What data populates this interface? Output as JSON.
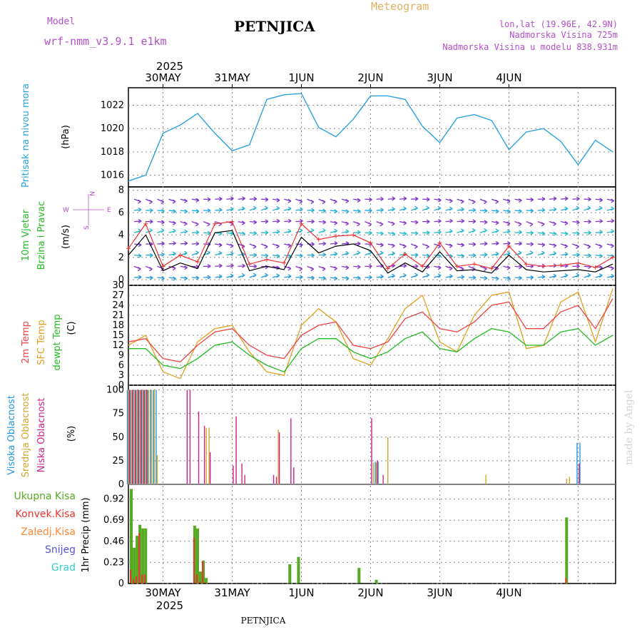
{
  "header": {
    "model_label": "Model",
    "model_name": "wrf-nmm_v3.9.1  e1km",
    "station": "PETNJICA",
    "product": "Meteogram",
    "lonlat": "lon,lat (19.96E, 42.9N)",
    "elev": "Nadmorska Visina 725m",
    "elev_model": "Nadmorska Visina u modelu 838.931m",
    "footer_station": "PETNJICA",
    "watermark": "made by Angel"
  },
  "time_axis": {
    "year": "2025",
    "labels": [
      "30MAY",
      "31MAY",
      "1JUN",
      "2JUN",
      "3JUN",
      "4JUN"
    ]
  },
  "colors": {
    "pressure": "#29a3dc",
    "wind_speed": "#000000",
    "wind_gust": "#ee3333",
    "t2m": "#ee4444",
    "tsfc": "#e0a020",
    "dewpt": "#22bb22",
    "cloud_high": "#2299dd",
    "cloud_mid": "#d4a52a",
    "cloud_low": "#cc2288",
    "rain_total": "#55aa22",
    "rain_conv": "#ee3333",
    "rain_frz": "#ff8833",
    "snow": "#5555dd",
    "hail": "#33cccc"
  },
  "panels": {
    "pressure": {
      "title": "Pritisak na nivou mora",
      "unit": "(hPa)",
      "ticks": [
        "1016",
        "1018",
        "1020",
        "1022"
      ]
    },
    "wind": {
      "title1": "10m Vjetar",
      "title2": "Brzina i Pravac",
      "unit": "(m/s)",
      "ticks": [
        "0",
        "2",
        "4",
        "6",
        "8"
      ],
      "compass": {
        "w": "W",
        "e": "E",
        "n": "N",
        "s": "S"
      }
    },
    "temp": {
      "t1": "2m Temp",
      "t2": "SFC Temp",
      "t3": "dewpt Temp",
      "unit": "(C)",
      "ticks": [
        "0",
        "3",
        "6",
        "9",
        "12",
        "15",
        "18",
        "21",
        "24",
        "27",
        "30"
      ]
    },
    "cloud": {
      "t1": "Visoka Oblacnost",
      "t2": "Srednja Oblacnost",
      "t3": "Niska Oblacnost",
      "unit": "(%)",
      "ticks": [
        "0",
        "25",
        "50",
        "75",
        "100"
      ]
    },
    "precip": {
      "labels": [
        "Ukupna Kisa",
        "Konvek.Kisa",
        "Zaledj.Kisa",
        "Snijeg",
        "Grad"
      ],
      "unit": "1hr Precip (mm)",
      "ticks": [
        "0",
        "0.23",
        "0.46",
        "0.69",
        "0.92"
      ]
    }
  },
  "chart_data": [
    {
      "type": "line",
      "title": "Pritisak na nivou mora",
      "ylabel": "(hPa)",
      "x_hours_from_29may_12utc": [
        0,
        6,
        12,
        18,
        24,
        30,
        36,
        42,
        48,
        54,
        60,
        66,
        72,
        78,
        84,
        90,
        96,
        102,
        108,
        114,
        120,
        126,
        132,
        138,
        144,
        150,
        156,
        162,
        168
      ],
      "series": [
        {
          "name": "Pritisak na nivou mora",
          "values": [
            1015.5,
            1016.0,
            1019.6,
            1020.3,
            1021.3,
            1019.6,
            1018.1,
            1018.6,
            1022.5,
            1022.9,
            1023.0,
            1020.1,
            1019.3,
            1020.8,
            1022.8,
            1022.8,
            1022.5,
            1020.2,
            1018.8,
            1020.9,
            1021.2,
            1020.7,
            1018.2,
            1019.7,
            1020.0,
            1018.9,
            1016.9,
            1019.0,
            1018.0
          ]
        }
      ],
      "ylim": [
        1015,
        1023.5
      ]
    },
    {
      "type": "line",
      "title": "10m Vjetar Brzina i Pravac",
      "ylabel": "(m/s)",
      "x_hours_from_29may_12utc": [
        0,
        6,
        12,
        18,
        24,
        30,
        36,
        42,
        48,
        54,
        60,
        66,
        72,
        78,
        84,
        90,
        96,
        102,
        108,
        114,
        120,
        126,
        132,
        138,
        144,
        150,
        156,
        162,
        168
      ],
      "series": [
        {
          "name": "10m Vjetar",
          "values": [
            2.2,
            4.0,
            0.8,
            1.5,
            1.0,
            4.2,
            4.4,
            0.8,
            1.2,
            0.9,
            3.8,
            2.4,
            3.0,
            3.2,
            2.6,
            0.6,
            1.5,
            0.7,
            2.5,
            0.8,
            0.9,
            0.6,
            2.2,
            0.9,
            0.7,
            0.8,
            0.9,
            0.7,
            1.4
          ]
        },
        {
          "name": "Brzina i Pravac",
          "values": [
            2.8,
            5.0,
            1.2,
            2.2,
            1.6,
            5.0,
            5.2,
            1.4,
            1.8,
            1.5,
            5.0,
            3.6,
            3.9,
            4.0,
            3.3,
            1.0,
            2.3,
            1.2,
            3.3,
            1.2,
            1.4,
            1.0,
            3.0,
            1.4,
            1.2,
            1.3,
            1.5,
            1.1,
            2.0
          ]
        }
      ],
      "ylim": [
        -0.5,
        8.3
      ]
    },
    {
      "type": "line",
      "title": "Temperatures",
      "ylabel": "(C)",
      "x_hours_from_29may_12utc": [
        0,
        6,
        12,
        18,
        24,
        30,
        36,
        42,
        48,
        54,
        60,
        66,
        72,
        78,
        84,
        90,
        96,
        102,
        108,
        114,
        120,
        126,
        132,
        138,
        144,
        150,
        156,
        162,
        168
      ],
      "series": [
        {
          "name": "2m Temp",
          "values": [
            13,
            14,
            8,
            7,
            12,
            16,
            17,
            12,
            9,
            8,
            15,
            18,
            19,
            12,
            11,
            13,
            20,
            22,
            17,
            16,
            19,
            24,
            25,
            17,
            17,
            22,
            24,
            17,
            26
          ]
        },
        {
          "name": "SFC Temp",
          "values": [
            12,
            15,
            4,
            2,
            13,
            17,
            18,
            10,
            4,
            3,
            18,
            23,
            19,
            8,
            6,
            14,
            23,
            27,
            13,
            10,
            21,
            27,
            28,
            11,
            12,
            25,
            28,
            13,
            29
          ]
        },
        {
          "name": "dewpt Temp",
          "values": [
            11,
            11,
            6,
            5,
            8,
            12,
            13,
            9,
            6,
            4,
            11,
            14,
            14,
            10,
            8,
            10,
            14,
            16,
            11,
            10,
            14,
            17,
            16,
            12,
            12,
            16,
            17,
            12,
            15
          ]
        }
      ],
      "ylim": [
        0,
        30
      ]
    },
    {
      "type": "bar",
      "title": "Oblacnost",
      "ylabel": "(%)",
      "categories_hours_from_29may_12utc": [
        0,
        1,
        2,
        3,
        4,
        5,
        6,
        7,
        8,
        9,
        10,
        20,
        21,
        22,
        23,
        24,
        26,
        27,
        28,
        36,
        37,
        38,
        39,
        40,
        50,
        51,
        52,
        56,
        57,
        58,
        60,
        84,
        85,
        86,
        87,
        88,
        90,
        120,
        124,
        130,
        152,
        153,
        154,
        155,
        156,
        157
      ],
      "series": [
        {
          "name": "Visoka Oblacnost",
          "values": [
            100,
            100,
            100,
            100,
            100,
            100,
            100,
            100,
            100,
            100,
            100,
            0,
            0,
            0,
            0,
            0,
            0,
            0,
            0,
            0,
            0,
            0,
            0,
            0,
            0,
            0,
            0,
            0,
            0,
            0,
            0,
            0,
            0,
            24,
            24,
            0,
            0,
            0,
            0,
            0,
            0,
            0,
            0,
            0,
            44,
            44
          ]
        },
        {
          "name": "Srednja Oblacnost",
          "values": [
            100,
            100,
            100,
            100,
            100,
            100,
            100,
            100,
            100,
            100,
            31,
            0,
            0,
            0,
            0,
            0,
            0,
            60,
            60,
            0,
            0,
            0,
            0,
            0,
            0,
            0,
            58,
            0,
            0,
            0,
            0,
            0,
            23,
            23,
            0,
            0,
            50,
            0,
            10,
            0,
            6,
            8,
            0,
            0,
            0,
            0
          ]
        },
        {
          "name": "Niska Oblacnost",
          "values": [
            100,
            100,
            100,
            100,
            100,
            100,
            100,
            0,
            0,
            0,
            0,
            100,
            100,
            0,
            0,
            77,
            62,
            0,
            34,
            20,
            72,
            0,
            22,
            10,
            10,
            8,
            55,
            70,
            18,
            0,
            0,
            70,
            0,
            25,
            0,
            10,
            0,
            0,
            0,
            0,
            0,
            0,
            0,
            0,
            22,
            0
          ]
        }
      ],
      "ylim": [
        0,
        105
      ]
    },
    {
      "type": "bar",
      "title": "1hr Precip",
      "ylabel": "1hr Precip (mm)",
      "categories_hours_from_29may_12utc": [
        1,
        2,
        3,
        4,
        5,
        6,
        23,
        24,
        25,
        26,
        27,
        56,
        59,
        80,
        86,
        152
      ],
      "series": [
        {
          "name": "Ukupna Kisa",
          "values": [
            1.03,
            0.39,
            0.52,
            0.64,
            0.6,
            0.6,
            0.63,
            0.6,
            0.13,
            0.25,
            0.06,
            0.21,
            0.29,
            0.17,
            0.04,
            0.72
          ]
        },
        {
          "name": "Konvek.Kisa",
          "values": [
            0.15,
            0.05,
            0.08,
            0.55,
            0.1,
            0.1,
            0.5,
            0.1,
            0.02,
            0.24,
            0.01,
            0.0,
            0.0,
            0.0,
            0.0,
            0.06
          ]
        }
      ],
      "ylim": [
        0,
        1.08
      ]
    }
  ]
}
